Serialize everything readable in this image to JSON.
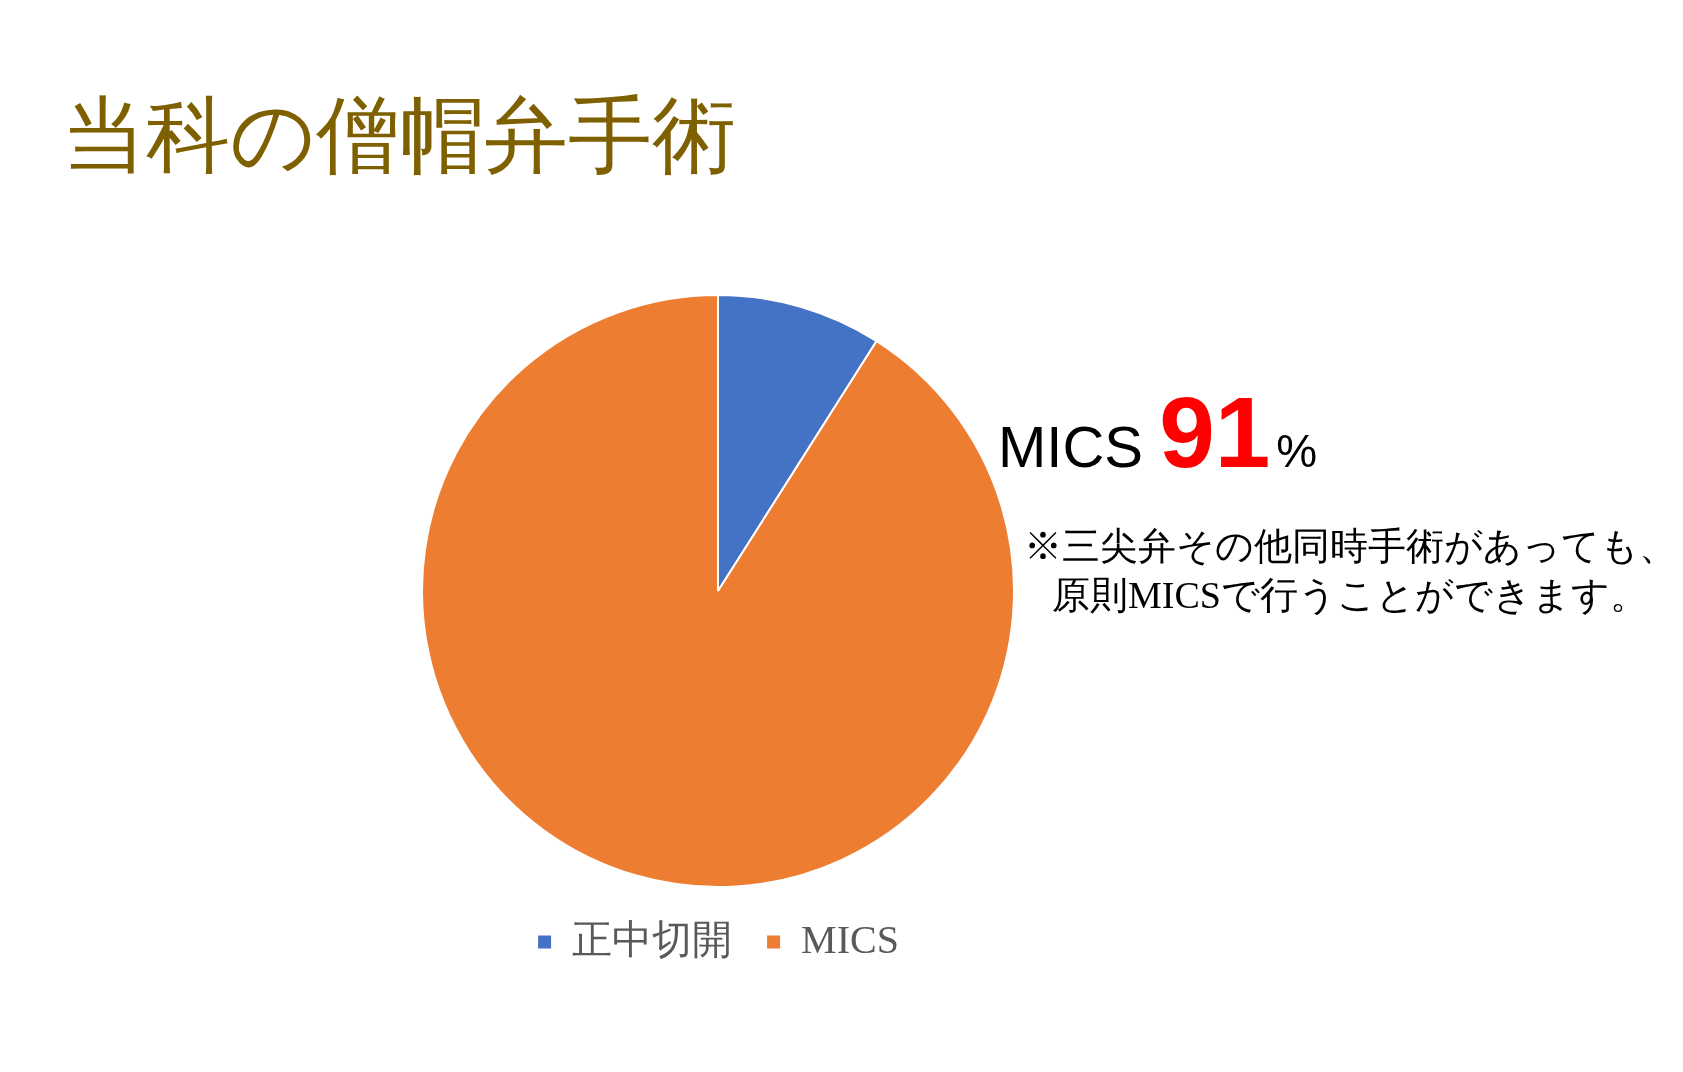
{
  "chart_data": {
    "type": "pie",
    "title": "当科の僧帽弁手術",
    "categories": [
      "正中切開",
      "MICS"
    ],
    "values": [
      9,
      91
    ],
    "colors": [
      "#4472c4",
      "#ed7d31"
    ],
    "legend": "bottom",
    "annotations": [
      "MICS 91%",
      "※三尖弁その他同時手術があっても、原則MICSで行うことができます。"
    ]
  }
}
